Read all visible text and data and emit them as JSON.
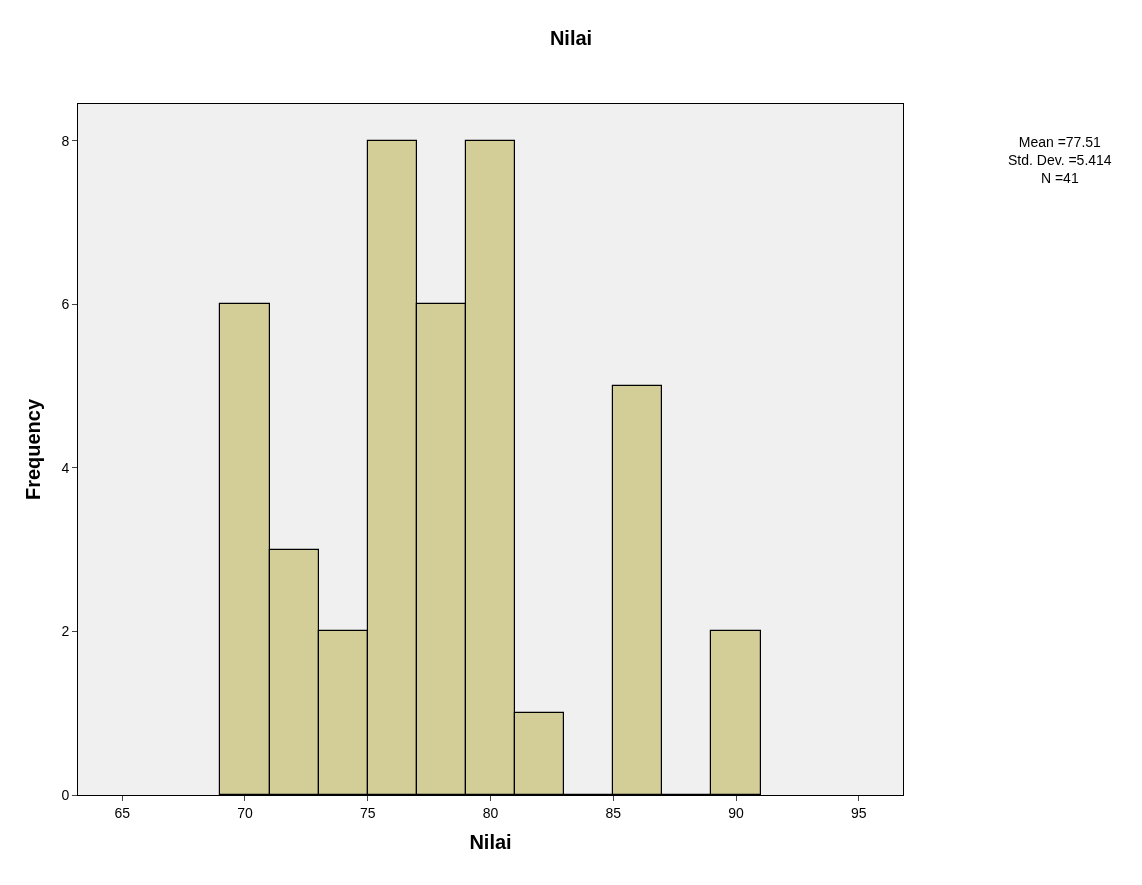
{
  "chart_data": {
    "type": "histogram",
    "title": "Nilai",
    "xlabel": "Nilai",
    "ylabel": "Frequency",
    "bins": [
      69,
      71,
      73,
      75,
      77,
      79,
      81,
      83,
      85,
      87,
      89,
      91
    ],
    "values": [
      6,
      3,
      2,
      8,
      6,
      8,
      1,
      0,
      5,
      0,
      2
    ],
    "color": "#d3ce97",
    "xlim": [
      63.2,
      96.8
    ],
    "xticks": [
      65,
      70,
      75,
      80,
      85,
      90,
      95
    ],
    "ylim": [
      0,
      8.45
    ],
    "yticks": [
      0,
      2,
      4,
      6,
      8
    ],
    "grid": false,
    "annotations": [
      "Mean =77.51\nStd. Dev. =5.414\nN =41"
    ]
  }
}
